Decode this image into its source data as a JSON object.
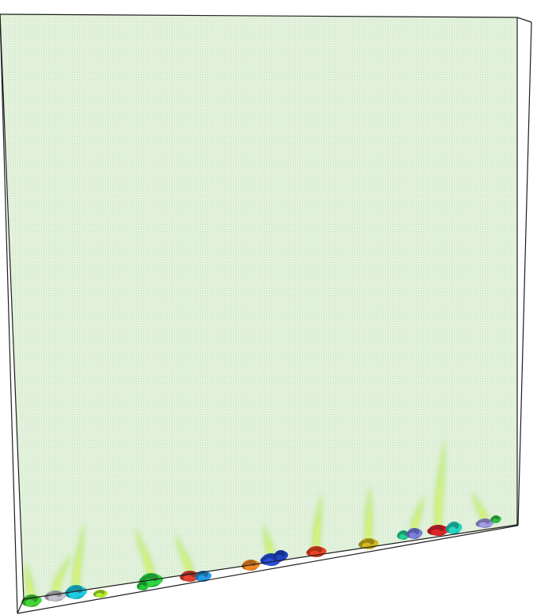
{
  "scene": {
    "background_color": "#ffffff",
    "field_tint_color": "#e4f2de",
    "field_dot_color": "#c7e3c0",
    "edge_color": "#1e1e1e",
    "plume_color": "#aee84e",
    "plume_highlight_color": "#e8f85a"
  },
  "blobs": [
    {
      "name": "green-1",
      "color": "#3ab82e"
    },
    {
      "name": "grey-1",
      "color": "#a9a9b1"
    },
    {
      "name": "cyan-1",
      "color": "#19b1c4"
    },
    {
      "name": "yellow-green",
      "color": "#9ccd24"
    },
    {
      "name": "green-2",
      "color": "#28b83a"
    },
    {
      "name": "green-3",
      "color": "#1fae34"
    },
    {
      "name": "red-1",
      "color": "#c6392b"
    },
    {
      "name": "blue-1",
      "color": "#1f87c7"
    },
    {
      "name": "orange-1",
      "color": "#d2771c"
    },
    {
      "name": "blue-2",
      "color": "#2246c4"
    },
    {
      "name": "navy-1",
      "color": "#1b3aa8"
    },
    {
      "name": "red-2",
      "color": "#cf3a1e"
    },
    {
      "name": "olive-1",
      "color": "#b8a31b"
    },
    {
      "name": "teal-1",
      "color": "#1fb780"
    },
    {
      "name": "slate-1",
      "color": "#6b6fc3"
    },
    {
      "name": "crimson-1",
      "color": "#c21f24"
    },
    {
      "name": "teal-2",
      "color": "#1fbba8"
    },
    {
      "name": "lavender-1",
      "color": "#8b88c8"
    },
    {
      "name": "green-4",
      "color": "#2da83a"
    }
  ]
}
